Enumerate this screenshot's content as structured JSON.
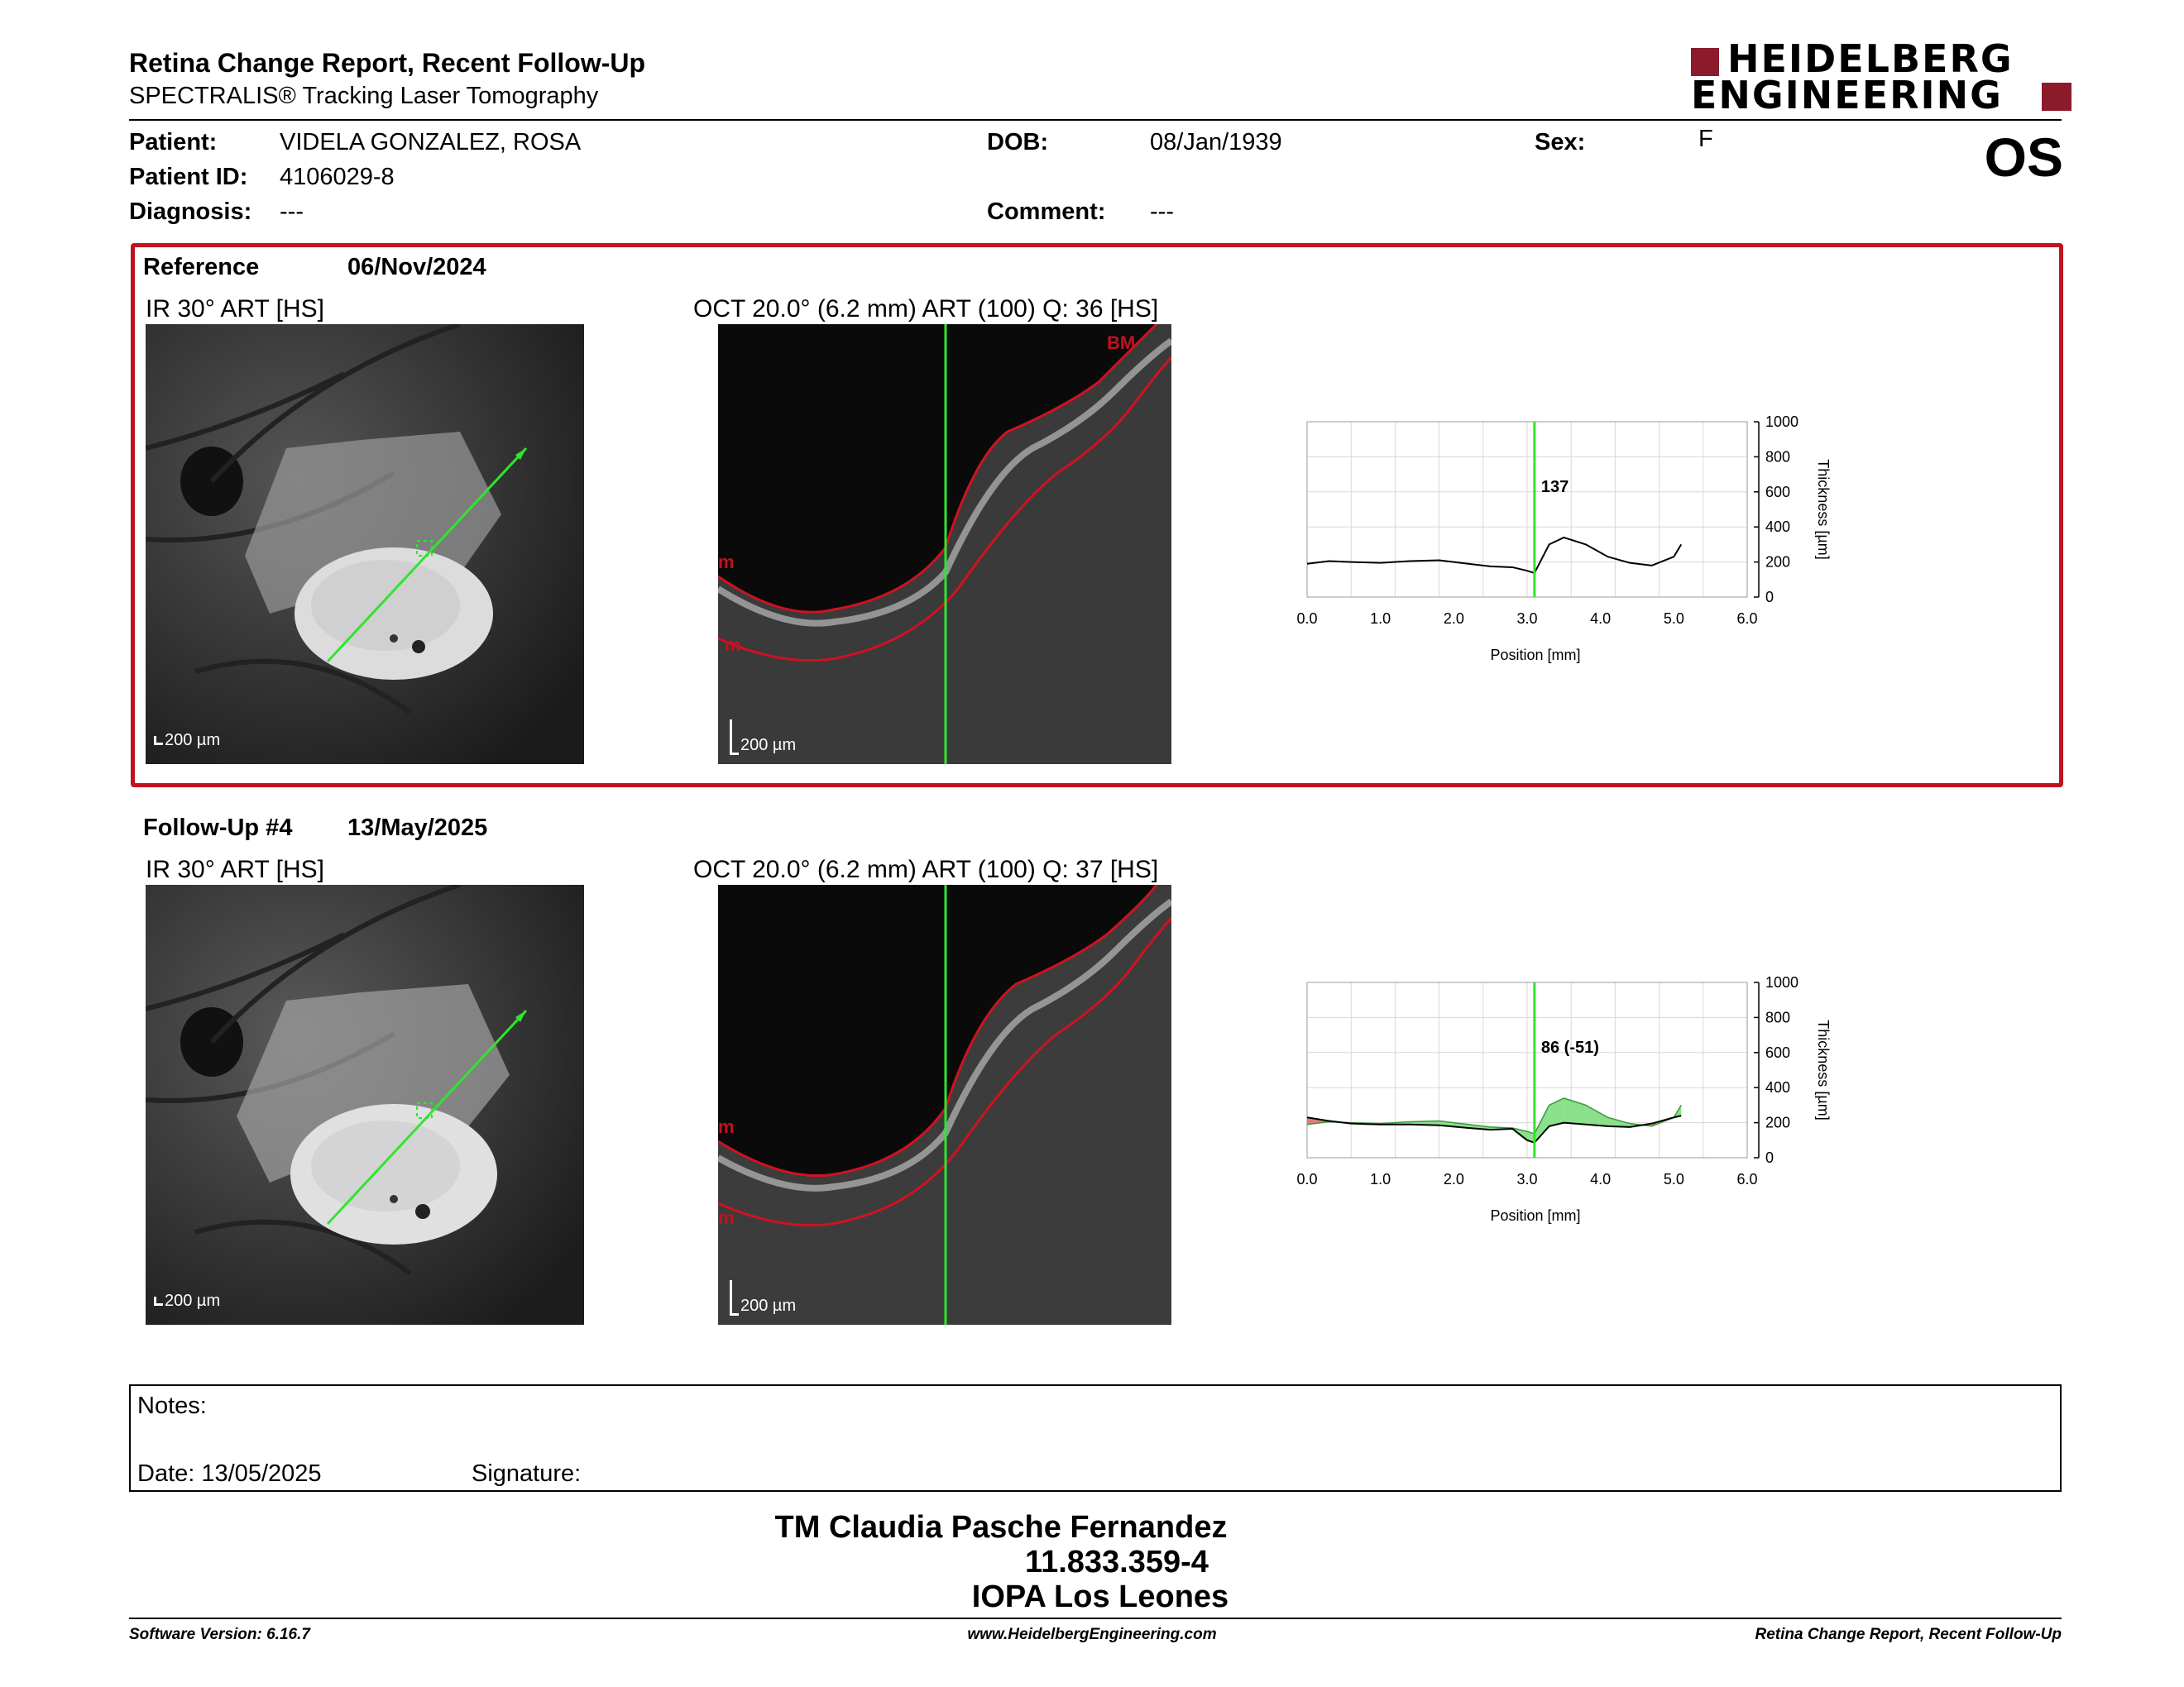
{
  "report": {
    "title": "Retina Change Report, Recent Follow-Up",
    "subtitle": "SPECTRALIS® Tracking Laser Tomography",
    "eye": "OS"
  },
  "logo": {
    "line1": "HEIDELBERG",
    "line2": "ENGINEERING",
    "accent": "#8b1a2b"
  },
  "patient": {
    "name_label": "Patient:",
    "name": "VIDELA GONZALEZ, ROSA",
    "id_label": "Patient ID:",
    "id": "4106029-8",
    "diagnosis_label": "Diagnosis:",
    "diagnosis": "---",
    "dob_label": "DOB:",
    "dob": "08/Jan/1939",
    "comment_label": "Comment:",
    "comment": "---",
    "sex_label": "Sex:",
    "sex": "F"
  },
  "reference": {
    "label": "Reference",
    "date": "06/Nov/2024",
    "ir_label": "IR 30° ART [HS]",
    "oct_label": "OCT 20.0° (6.2 mm) ART (100) Q: 36 [HS]",
    "scale": "200 µm",
    "layer_top": "BM",
    "layer_mid": "m",
    "layer_bot": "m",
    "thickness_value": "137"
  },
  "followup": {
    "label": "Follow-Up #4",
    "date": "13/May/2025",
    "ir_label": "IR 30° ART [HS]",
    "oct_label": "OCT 20.0° (6.2 mm) ART (100) Q: 37 [HS]",
    "scale": "200 µm",
    "layer_mid": "m",
    "layer_bot": "m",
    "thickness_value": "86 (-51)"
  },
  "chart_data": [
    {
      "type": "line",
      "xlabel": "Position [mm]",
      "ylabel": "Thickness [µm]",
      "xlim": [
        0,
        6
      ],
      "ylim": [
        0,
        1000
      ],
      "x_ticks": [
        "0.0",
        "1.0",
        "2.0",
        "3.0",
        "4.0",
        "5.0",
        "6.0"
      ],
      "y_ticks": [
        "0",
        "200",
        "400",
        "600",
        "800",
        "1000"
      ],
      "cursor_x": 3.1,
      "series": [
        {
          "x": [
            0,
            0.3,
            0.6,
            1.0,
            1.4,
            1.8,
            2.2,
            2.5,
            2.8,
            3.0,
            3.1,
            3.3,
            3.5,
            3.8,
            4.1,
            4.4,
            4.7,
            5.0,
            5.1
          ],
          "y": [
            190,
            205,
            200,
            195,
            205,
            210,
            190,
            175,
            170,
            150,
            137,
            300,
            340,
            300,
            230,
            195,
            180,
            230,
            300
          ]
        }
      ]
    },
    {
      "type": "area",
      "xlabel": "Position [mm]",
      "ylabel": "Thickness [µm]",
      "xlim": [
        0,
        6
      ],
      "ylim": [
        0,
        1000
      ],
      "x_ticks": [
        "0.0",
        "1.0",
        "2.0",
        "3.0",
        "4.0",
        "5.0",
        "6.0"
      ],
      "y_ticks": [
        "0",
        "200",
        "400",
        "600",
        "800",
        "1000"
      ],
      "cursor_x": 3.1,
      "series": [
        {
          "x": [
            0,
            0.3,
            0.6,
            1.0,
            1.4,
            1.8,
            2.2,
            2.5,
            2.8,
            3.0,
            3.1,
            3.3,
            3.5,
            3.8,
            4.1,
            4.4,
            4.7,
            5.0,
            5.1
          ],
          "y": [
            230,
            210,
            195,
            190,
            190,
            185,
            170,
            160,
            165,
            100,
            86,
            180,
            200,
            190,
            180,
            175,
            195,
            230,
            240
          ]
        },
        {
          "x": [
            0,
            0.3,
            0.6,
            1.0,
            1.4,
            1.8,
            2.2,
            2.5,
            2.8,
            3.0,
            3.1,
            3.3,
            3.5,
            3.8,
            4.1,
            4.4,
            4.7,
            5.0,
            5.1
          ],
          "y": [
            190,
            205,
            200,
            195,
            205,
            210,
            190,
            175,
            170,
            150,
            137,
            300,
            340,
            300,
            230,
            195,
            180,
            230,
            300
          ]
        }
      ]
    }
  ],
  "colors": {
    "frame_red": "#c0121f",
    "green": "#2ee62e",
    "gain": "#8be08b",
    "loss": "#e07a7a"
  },
  "notes": {
    "notes_label": "Notes:",
    "date_label": "Date: 13/05/2025",
    "signature_label": "Signature:"
  },
  "signature": {
    "name": "TM Claudia Pasche Fernandez",
    "rut": "11.833.359-4",
    "place": "IOPA Los Leones"
  },
  "footer": {
    "version": "Software Version: 6.16.7",
    "website": "www.HeidelbergEngineering.com",
    "report_name": "Retina Change Report, Recent Follow-Up"
  }
}
